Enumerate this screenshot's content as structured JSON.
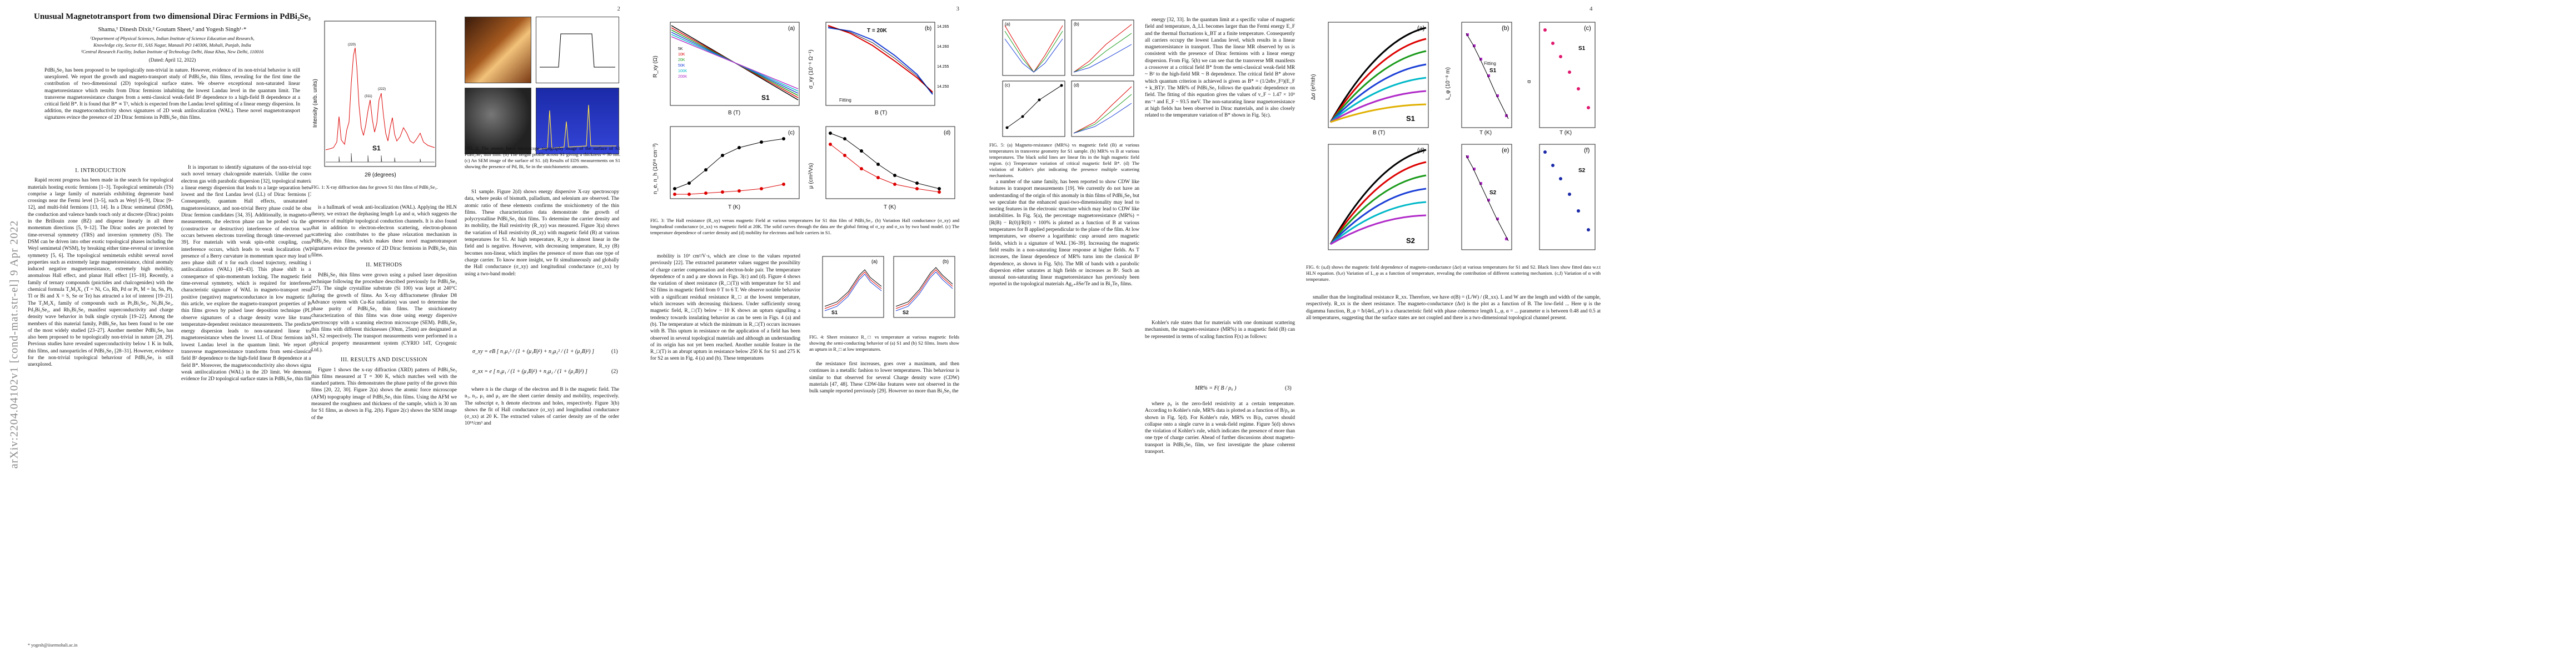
{
  "arxiv": {
    "stamp": "arXiv:2204.04102v1  [cond-mat.str-el]  9 Apr 2022"
  },
  "page1": {
    "title": "Unusual Magnetotransport from two dimensional Dirac Fermions in PdBi₂Se₃",
    "authors": "Shama,¹ Dinesh Dixit,² Goutam Sheet,² and Yogesh Singh¹·*",
    "affil1": "¹Department of Physical Sciences, Indian Institute of Science Education and Research,",
    "affil1b": "Knowledge city, Sector 81, SAS Nagar, Manauli PO 140306, Mohali, Punjab, India",
    "affil2": "²Central Research Facility, Indian Institute of Technology Delhi, Hauz Khas, New Delhi, 110016",
    "date": "(Dated: April 12, 2022)",
    "abstract": "PdBi₂Se₃ has been proposed to be topologically non-trivial in nature. However, evidence of its non-trivial behavior is still unexplored. We report the growth and magneto-transport study of PdBi₂Se₃ thin films, revealing for the first time the contribution of two-dimensional (2D) topological surface states. We observe exceptional non-saturated linear magnetoresistance which results from Dirac fermions inhabiting the lowest Landau level in the quantum limit. The transverse magnetoresistance changes from a semi-classical weak-field B² dependence to a high-field B dependence at a critical field B*. It is found that B* ∝ T², which is expected from the Landau level splitting of a linear energy dispersion. In addition, the magnetoconductivity shows signatures of 2D weak antilocalization (WAL). These novel magnetotransport signatures evince the presence of 2D Dirac fermions in PdBi₂Se₃ thin films.",
    "sec1": "I.   INTRODUCTION",
    "col1": "Rapid recent progress has been made in the search for topological materials hosting exotic fermions [1–3]. Topological semimetals (TS) comprise a large family of materials exhibiting degenerate band crossings near the Fermi level [3–5], such as Weyl [6–9], Dirac [9–12], and multi-fold fermions [13, 14]. In a Dirac semimetal (DSM), the conduction and valence bands touch only at discrete (Dirac) points in the Brillouin zone (BZ) and disperse linearly in all three momentum directions [5, 9–12]. The Dirac nodes are protected by time-reversal symmetry (TRS) and inversion symmetry (IS). The DSM can be driven into other exotic topological phases including the Weyl semimetal (WSM), by breaking either time-reversal or inversion symmetry [5, 6]. The topological semimetals exhibit several novel properties such as extremely large magnetoresistance, chiral anomaly induced negative magnetoresistance, extremely high mobility, anomalous Hall effect, and planar Hall effect [15–18]. Recently, a family of ternary compounds (pnictides and chalcogenides) with the chemical formula T₂M₃X₂ (T = Ni, Co, Rh, Pd or Pt, M = In, Sn, Pb, Tl or Bi and X = S, Se or Te) has attracted a lot of interest [19–21]. The T₃M₂X₂ family of compounds such as Pt₃Bi₂Se₂, Ni₃Bi₂Se₂, Pd₃Bi₂Se₂, and Rh₃Bi₂Se₂ manifest superconductivity and charge density wave behavior in bulk single crystals [19–22]. Among the members of this material family, PdBi₂Se₃ has been found to be one of the most widely studied [23–27]. Another member PdBi₂Se₃ has also been proposed to be topologically non-trivial in nature [28, 29]. Previous studies have revealed superconductivity below 1 K in bulk, thin films, and nanoparticles of PdBi₂Se₃ [28–31]. However, evidence for the non-trivial topological behaviour of PdBi₂Se₃ is still unexplored.",
    "footnote": "* yogesh@iisermohali.ac.in",
    "col2": "It is important to identify signatures of the non-trivial topology in such novel ternary chalcogenide materials. Unlike the conventional electron gas with parabolic dispersion [32], topological materials have a linear energy dispersion that leads to a large separation between the lowest and the first Landau level (LL) of Dirac fermions [32, 33]. Consequently, quantum Hall effects, unsaturated linear magnetoresistance, and non-trivial Berry phase could be observed in Dirac fermion candidates [34, 35]. Additionally, in magneto-transport measurements, the electron phase can be probed via the quantum (constructive or destructive) interference of electron waves that occurs between electrons traveling through time-reversed paths [36–39]. For materials with weak spin-orbit coupling, constructive interference occurs, which leads to weak localization (WL). The presence of a Berry curvature in momentum space may lead to a non-zero phase shift of π for each closed trajectory, resulting in weak antilocalization (WAL) [40–43]. This phase shift is a direct consequence of spin-momentum locking. The magnetic field breaks time-reversal symmetry, which is required for interference. The characteristic signature of WAL in magneto-transport results in a positive (negative) magnetoconductance in low magnetic fields. In this article, we explore the magneto-transport properties of PdBi₂Se₃ thin films grown by pulsed laser deposition technique (PLD). We observe signatures of a charge density wave like transition in temperature-dependent resistance measurements. The predicted linear energy dispersion leads to non-saturated linear transverse magnetoresistance when the lowest LL of Dirac fermions inhabit the lowest Landau level in the quantum limit. We report that the transverse magnetoresistance transforms from semi-classical weak-field B² dependence to the high-field linear B dependence at a critical field B*. Moreover, the magnetoconductivity also shows signatures of weak antilocalization (WAL) in the 2D limit. We demonstrate the evidence for 2D topological surface states in PdBi₂Se₃ thin films."
  },
  "page2": {
    "num": "2",
    "fig1_caption": "FIG. 1: X-ray diffraction data for grown S1 thin films of PdBi₂Se₃.",
    "fig2_caption": "FIG. 2: The atomic force microscope topography image of the surface of S1 PdBi₂Se₃ thin film. (b) The height profile across S1 giving a thickness ≈ 30 nm. (c) An SEM image of the surface of S1. (d) Results of EDS measurements on S1 showing the presence of Pd, Bi, Se in the stoichiometric amounts.",
    "xrd_ylabel": "Intensity (arb. units)",
    "xrd_xlabel": "2θ (degrees)",
    "xrd_sample": "S1",
    "col1": "is a hallmark of weak anti-localization (WAL). Applying the HLN theory, we extract the dephasing length Lφ and α, which suggests the presence of multiple topological conduction channels. It is also found that in addition to electron-electron scattering, electron-phonon scattering also contributes to the phase relaxation mechanism in PdBi₂Se₃ thin films, which makes these novel magnetotransport signatures evince the presence of 2D Dirac fermions in PdBi₂Se₃ thin films.",
    "sec2": "II.   METHODS",
    "col1b": "PdBi₂Se₃ thin films were grown using a pulsed laser deposition technique following the procedure described previously for PdBi₂Se₃ [27]. The single crystalline substrate (Si 100) was kept at 240°C during the growth of films. An X-ray diffractometer (Bruker D8 Advance system with Cu-Kα radiation) was used to determine the phase purity of PdBi₂Se₃ thin films. The stoichiometry characterization of thin films was done using energy dispersive spectroscopy with a scanning electron microscope (SEM). PdBi₂Se₃ thin films with different thicknesses (30nm, 25nm) are designated as S1, S2 respectively. The transport measurements were performed in a physical property measurement system (CYRIO 14T, Cryogenic Ltd.).",
    "sec3": "III.   RESULTS AND DISCUSSION",
    "col1c": "Figure 1 shows the x-ray diffraction (XRD) pattern of PdBi₂Se₃ thin films measured at T = 300 K, which matches well with the standard pattern. This demonstrates the phase purity of the grown thin films [20, 22, 30]. Figure 2(a) shows the atomic force microscope (AFM) topography image of PdBi₂Se₃ thin films. Using the AFM we measured the roughness and thickness of the sample, which is 30 nm for S1 films, as shown in Fig. 2(b). Figure 2(c) shows the SEM image of the",
    "col2": "S1 sample. Figure 2(d) shows energy dispersive X-ray spectroscopy data, where peaks of bismuth, palladium, and selenium are observed. The atomic ratio of these elements confirms the stoichiometry of the thin films. These characterization data demonstrate the growth of polycrystalline PdBi₂Se₃ thin films. To determine the carrier density and its mobility, the Hall resistivity (R_xy) was measured. Figure 3(a) shows the variation of Hall resistivity (R_xy) with magnetic field (B) at various temperatures for S1. At high temperature, R_xy is almost linear in the field and is negative. However, with decreasing temperature, R_xy (B) becomes non-linear, which implies the presence of more than one type of charge carrier. To know more insight, we fit simultaneously and globally the Hall conductance (σ_xy) and longitudinal conductance (σ_xx) by using a two-band model:",
    "eq1": "σ_xy = eB [ n₁μ₁² / (1 + (μ₁B)²) + n₂μ₂² / (1 + (μ₂B)²) ]",
    "eq1_num": "(1)",
    "eq2": "σ_xx = e [ n₁μ₁ / (1 + (μ₁B)²) + n₂μ₂ / (1 + (μ₂B)²) ]",
    "eq2_num": "(2)",
    "col2b": "where n is the charge of the electron and B is the magnetic field. The n₁, n₂, μ₁ and μ₂ are the sheet carrier density and mobility, respectively. The subscript e, h denote electrons and holes, respectively. Figure 3(b) shows the fit of Hall conductance (σ_xy) and longitudinal conductance (σ_xx) at 20 K. The extracted values of carrier density are of the order 10¹⁸/cm³ and"
  },
  "page3": {
    "num": "3",
    "fig3_caption": "FIG. 3: The Hall resistance (R_xy) versus magnetic Field at various temperatures for S1 thin film of PdBi₂Se₃. (b) Variation Hall conductance (σ_xy) and longitudinal conductance (σ_xx) vs magnetic field at 20K. The solid curves through the data are the global fitting of σ_xy and σ_xx by two band model. (c) The temperature dependence of carrier density and (d) mobility for electrons and hole carriers in S1.",
    "fig4_caption": "FIG. 4: Sheet resistance R_□ vs temperature at various magnetic fields showing the semi-conducting behavior of (a) S1 and (b) S2 films. Insets show an upturn in R_□ at low temperatures.",
    "a_ylabel": "R_xy (Ω)",
    "a_xlabel": "B (T)",
    "b_ylabel": "σ_xy (10⁻⁶ Ω⁻¹)",
    "b_xlabel": "B (T)",
    "b_temp": "T = 20K",
    "b_fit": "Fitting",
    "c_ylabel": "n_e, n_h (10¹⁸ cm⁻³)",
    "c_xlabel": "T (K)",
    "d_ylabel": "μ (cm²/Vs)",
    "d_xlabel": "T (K)",
    "col1": "mobility is 10³ cm²/V·s, which are close to the values reported previously [22]. The extracted parameter values suggest the possibility of charge carrier compensation and electron-hole pair. The temperature dependence of n and μ are shown in Figs. 3(c) and (d). Figure 4 shows the variation of sheet resistance (R_□(T)) with temperature for S1 and S2 films in magnetic field from 0 T to 6 T. We observe notable behavior with a significant residual resistance R_□ at the lowest temperature, which increases with decreasing thickness. Under sufficiently strong magnetic field, R_□(T) below ~ 10 K shows an upturn signalling a tendency towards insulating behavior as can be seen in Figs. 4 (a) and (b). The temperature at which the minimum in R_□(T) occurs increases with B. This upturn in resistance on the application of a field has been observed in several topological materials and although an understanding of its origin has not yet been reached. Another notable feature in the R_□(T) is an abrupt upturn in resistance below 250 K for S1 and 275 K for S2 as seen in Fig. 4 (a) and (b). These temperatures",
    "col2": "the resistance first increases, goes over a maximum, and then continues in a metallic fashion to lower temperatures. This behaviour is similar to that observed for several Charge density wave (CDW) materials [47, 48]. These CDW-like features were not observed in the bulk sample reported previously [29]. However no more than Bi₂Se₃ the"
  },
  "page4": {
    "num": "4",
    "fig5_caption": "FIG. 5: (a) Magneto-resistance (MR%) vs magnetic field (B) at various temperatures in transverse geometry for S1 sample. (b) MR% vs B at various temperatures. The black solid lines are linear fits in the high magnetic field region. (c) Temperature variation of critical magnetic field B*. (d) The violation of Kohler's plot indicating the presence multiple scattering mechanisms.",
    "col1": "energy [32, 33]. In the quantum limit at a specific value of magnetic field and temperature, Δ_LL becomes larger than the Fermi energy E_F and the thermal fluctuations k_BT at a finite temperature. Consequently all carriers occupy the lowest Landau level, which results in a linear magnetoresistance in transport. Thus the linear MR observed by us is consistent with the presence of Dirac fermions with a linear energy dispersion. From Fig. 5(b) we can see that the transverse MR manifests a crossover at a critical field B* from the semi-classical weak-field MR ~ B² to the high-field MR ~ B dependence. The critical field B* above which quantum criterion is achieved is given as B* = (1/2eħv_F²)(E_F + k_BT)². The MR% of PdBi₂Se₃ follows the quadratic dependence on field. The fitting of this equation gives the values of v_F ~ 1.47 × 10⁵ ms⁻¹ and E_F ~ 93.5 meV. The non-saturating linear magnetoresistance at high fields has been observed in Dirac materials, and is also closely related to the temperature variation of B* shown in Fig. 5(c).",
    "col2": "a number of the same family, has been reported to show CDW like features in transport measurements [19]. We currently do not have an understanding of the origin of this anomaly in thin films of PdBi₂Se₃ but we speculate that the enhanced quasi-two-dimensionality may lead to nesting features in the electronic structure which may lead to CDW like instabilities. In Fig. 5(a), the percentage magnetoresistance (MR%) = [R(B) − R(0)]/R(0) × 100% is plotted as a function of B at various temperatures for B applied perpendicular to the plane of the film. At low temperatures, we observe a logarithmic cusp around zero magnetic fields, which is a signature of WAL [36–39]. Increasing the magnetic field results in a non-saturating linear response at higher fields. As T increases, the linear dependence of MR% turns into the classical B² dependence, as shown in Fig. 5(b). The MR of bands with a parabolic dispersion either saturates at high fields or increases as B². Such an unusual non-saturating linear magnetoresistance has previously been reported in the topological materials Ag₂₊δSe/Te and in Bi₂Te₃ films.",
    "col3": "Kohler's rule states that for materials with one dominant scattering mechanism, the magneto-resistance (MR%) in a magnetic field (B) can be represented in terms of scaling function F(x) as follows:",
    "eq3": "MR% = F( B / ρ₀ )",
    "eq3_num": "(3)",
    "col3b": "where ρ₀ is the zero-field resistivity at a certain temperature. According to Kohler's rule, MR% data is plotted as a function of B/ρ₀ as shown in Fig. 5(d). For Kohler's rule, MR% vs B/ρ₀ curves should collapse onto a single curve in a weak-field regime. Figure 5(d) shows the violation of Kohler's rule, which indicates the presence of more than one type of charge carrier. Ahead of further discussions about magneto-transport in PdBi₂Se₃ film, we first investigate the phase coherent transport.",
    "fig6_caption": "FIG. 6: (a,d) shows the magnetic field dependence of magneto-conductance (Δσ) at various temperatures for S1 and S2. Black lines show fitted data w.r.t HLN equation. (b,e) Variation of L_φ as a function of temperature, revealing the contribution of different scattering mechanism. (c,f) Variation of α with temperature.",
    "a_ylabel": "Δσ (e²/πh)",
    "a_xlabel": "B (T)",
    "b_ylabel": "L_φ (10⁻⁸ m)",
    "b_xlabel": "T (K)",
    "c_ylabel": "α",
    "c_xlabel": "T (K)",
    "fit_label": "Fitting",
    "col4": "smaller than the longitudinal resistance R_xx. Therefore, we have σ(B) = (L/W) / (R_xx). L and W are the length and width of the sample, respectively. R_xx is the sheet resistance. The magneto-conductance (Δσ) is the plot as a function of B. The low-field ... Here ψ is the digamma function, B_φ = ħ/(4eL_φ²) is a characteristic field with phase coherence length L_φ, α = ... parameter α is between 0.48 and 0.5 at all temperatures, suggesting that the surface states are not coupled and there is a two-dimensional topological channel present."
  }
}
